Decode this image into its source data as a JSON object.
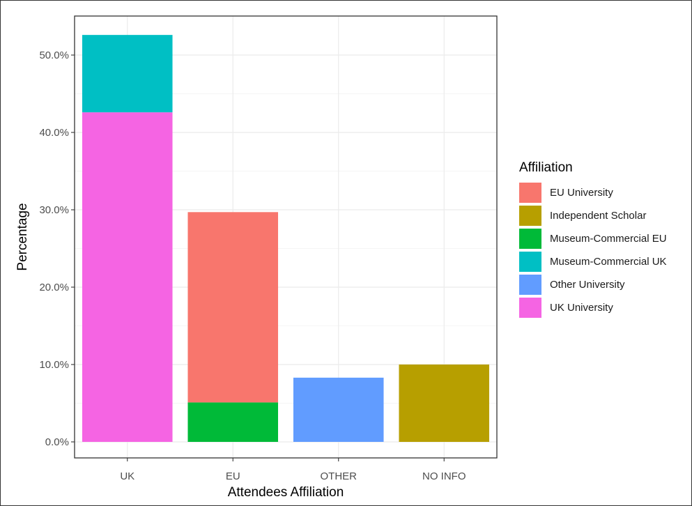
{
  "chart_data": {
    "type": "bar",
    "stacked": true,
    "categories": [
      "UK",
      "EU",
      "OTHER",
      "NO INFO"
    ],
    "series": [
      {
        "name": "EU University",
        "color": "#F8766D",
        "values": [
          0,
          24.6,
          0,
          0
        ]
      },
      {
        "name": "Independent Scholar",
        "color": "#B79F00",
        "values": [
          0,
          0,
          0,
          10.0
        ]
      },
      {
        "name": "Museum-Commercial EU",
        "color": "#00BA38",
        "values": [
          0,
          5.1,
          0,
          0
        ]
      },
      {
        "name": "Museum-Commercial UK",
        "color": "#00BFC4",
        "values": [
          10.0,
          0,
          0,
          0
        ]
      },
      {
        "name": "Other University",
        "color": "#619CFF",
        "values": [
          0,
          0,
          8.3,
          0
        ]
      },
      {
        "name": "UK University",
        "color": "#F564E3",
        "values": [
          42.6,
          0,
          0,
          0
        ]
      }
    ],
    "stack_order_bottom_to_top": [
      "UK University",
      "Museum-Commercial EU",
      "EU University",
      "Other University",
      "Independent Scholar",
      "Museum-Commercial UK"
    ],
    "xlabel": "Attendees Affiliation",
    "ylabel": "Percentage",
    "ylim": [
      0,
      54.5
    ],
    "yticks": [
      0,
      10,
      20,
      30,
      40,
      50
    ],
    "ytick_labels": [
      "0.0%",
      "10.0%",
      "20.0%",
      "30.0%",
      "40.0%",
      "50.0%"
    ],
    "legend_title": "Affiliation",
    "legend_position": "right",
    "grid": true,
    "theme": "bw"
  }
}
